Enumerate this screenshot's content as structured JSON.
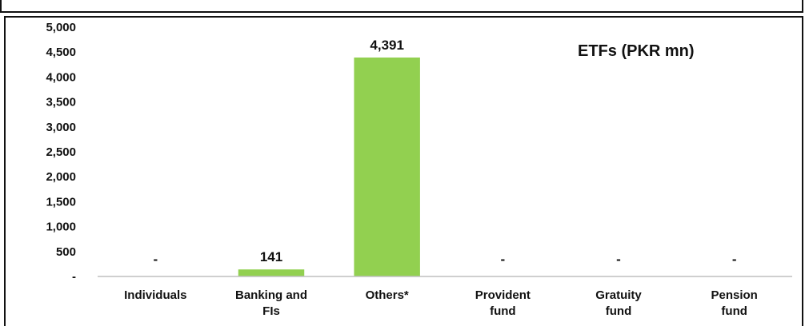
{
  "chart_data": {
    "type": "bar",
    "title": "ETFs (PKR mn)",
    "categories": [
      [
        "Individuals"
      ],
      [
        "Banking and",
        "FIs"
      ],
      [
        "Others*"
      ],
      [
        "Provident",
        "fund"
      ],
      [
        "Gratuity",
        "fund"
      ],
      [
        "Pension",
        "fund"
      ]
    ],
    "values": [
      0,
      141,
      4391,
      0,
      0,
      0
    ],
    "data_labels": [
      "-",
      "141",
      "4,391",
      "-",
      "-",
      "-"
    ],
    "ylim": [
      0,
      5000
    ],
    "yticks": [
      0,
      500,
      1000,
      1500,
      2000,
      2500,
      3000,
      3500,
      4000,
      4500,
      5000
    ],
    "ytick_labels": [
      "-",
      "500",
      "1,000",
      "1,500",
      "2,000",
      "2,500",
      "3,000",
      "3,500",
      "4,000",
      "4,500",
      "5,000"
    ],
    "grid": false,
    "legend": "none",
    "bar_color": "#92d050",
    "xlabel": "",
    "ylabel": ""
  }
}
